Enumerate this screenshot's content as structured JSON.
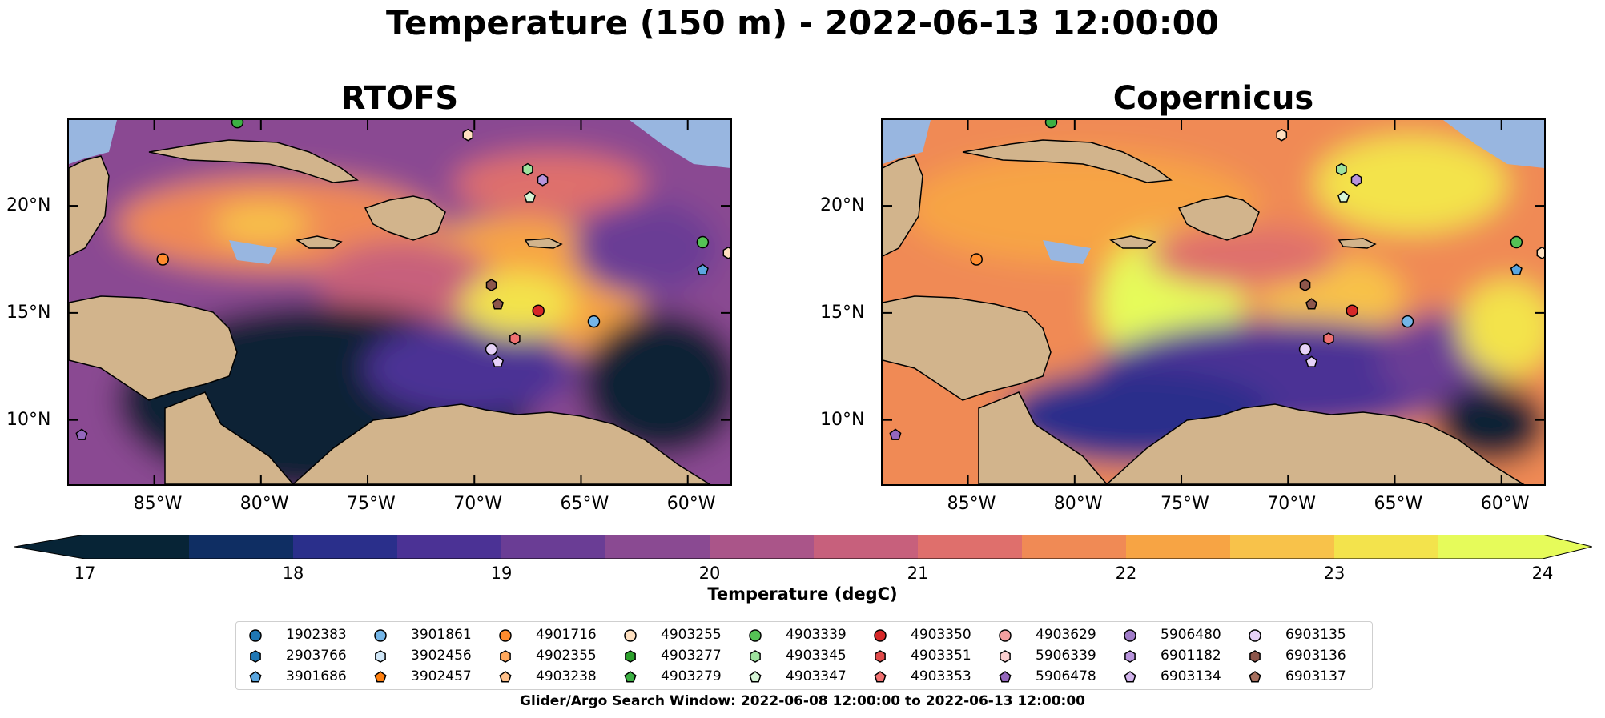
{
  "figure": {
    "suptitle": "Temperature (150 m) - 2022-06-13 12:00:00",
    "footnote": "Glider/Argo Search Window: 2022-06-08 12:00:00 to 2022-06-13 12:00:00"
  },
  "panels": [
    {
      "title": "RTOFS"
    },
    {
      "title": "Copernicus"
    }
  ],
  "axes": {
    "lat_labels": [
      "20°N",
      "15°N",
      "10°N"
    ],
    "lon_labels": [
      "85°W",
      "80°W",
      "75°W",
      "70°W",
      "65°W",
      "60°W"
    ],
    "lat_values": [
      20,
      15,
      10
    ],
    "lon_values": [
      -85,
      -80,
      -75,
      -70,
      -65,
      -60
    ],
    "extent": {
      "lon": [
        -89,
        -58
      ],
      "lat": [
        7,
        24
      ]
    }
  },
  "colorbar": {
    "label": "Temperature (degC)",
    "ticks": [
      "17",
      "18",
      "19",
      "20",
      "21",
      "22",
      "23",
      "24"
    ],
    "range": [
      17,
      24
    ],
    "extend": "both",
    "colormap": "thermal",
    "colors": [
      "#072436",
      "#0f2e63",
      "#2a2f8b",
      "#4b3295",
      "#6a3d95",
      "#8a4a92",
      "#aa5589",
      "#c7607c",
      "#df6f6c",
      "#f08a55",
      "#f7a444",
      "#f8c24a",
      "#f3e34c",
      "#e6fb5a"
    ]
  },
  "legend": {
    "items": [
      {
        "id": "1902383",
        "marker": "circle",
        "color": "#1f77b4"
      },
      {
        "id": "2903766",
        "marker": "hexagon",
        "color": "#1f77b4"
      },
      {
        "id": "3901686",
        "marker": "pentagon",
        "color": "#5aa6df"
      },
      {
        "id": "3901861",
        "marker": "circle",
        "color": "#74b6e8"
      },
      {
        "id": "3902456",
        "marker": "hexagon",
        "color": "#cfe6f7"
      },
      {
        "id": "3902457",
        "marker": "pentagon",
        "color": "#ff7f0e"
      },
      {
        "id": "4901716",
        "marker": "circle",
        "color": "#ff8c2e"
      },
      {
        "id": "4902355",
        "marker": "hexagon",
        "color": "#ffa85c"
      },
      {
        "id": "4903238",
        "marker": "pentagon",
        "color": "#ffc08a"
      },
      {
        "id": "4903255",
        "marker": "circle",
        "color": "#ffe0c0"
      },
      {
        "id": "4903277",
        "marker": "hexagon",
        "color": "#2ca02c"
      },
      {
        "id": "4903279",
        "marker": "pentagon",
        "color": "#3cb043"
      },
      {
        "id": "4903339",
        "marker": "circle",
        "color": "#55c255"
      },
      {
        "id": "4903345",
        "marker": "hexagon",
        "color": "#9ee29e"
      },
      {
        "id": "4903347",
        "marker": "pentagon",
        "color": "#d6f5d6"
      },
      {
        "id": "4903350",
        "marker": "circle",
        "color": "#d62728"
      },
      {
        "id": "4903351",
        "marker": "hexagon",
        "color": "#e04a4a"
      },
      {
        "id": "4903353",
        "marker": "pentagon",
        "color": "#f07070"
      },
      {
        "id": "4903629",
        "marker": "circle",
        "color": "#f4a0a0"
      },
      {
        "id": "5906339",
        "marker": "hexagon",
        "color": "#fbd0d0"
      },
      {
        "id": "5906478",
        "marker": "pentagon",
        "color": "#9467bd"
      },
      {
        "id": "5906480",
        "marker": "circle",
        "color": "#a07cc8"
      },
      {
        "id": "6901182",
        "marker": "hexagon",
        "color": "#b894dc"
      },
      {
        "id": "6903134",
        "marker": "pentagon",
        "color": "#d2b4ec"
      },
      {
        "id": "6903135",
        "marker": "circle",
        "color": "#e6d2f8"
      },
      {
        "id": "6903136",
        "marker": "hexagon",
        "color": "#8c564b"
      },
      {
        "id": "6903137",
        "marker": "pentagon",
        "color": "#a8705f"
      }
    ]
  },
  "floats_on_map": [
    {
      "lon": -81.1,
      "lat": 23.9,
      "marker": "circle",
      "color": "#3cb043"
    },
    {
      "lon": -70.3,
      "lat": 23.3,
      "marker": "hexagon",
      "color": "#ffe0c0"
    },
    {
      "lon": -67.5,
      "lat": 21.7,
      "marker": "hexagon",
      "color": "#9ee29e"
    },
    {
      "lon": -66.8,
      "lat": 21.2,
      "marker": "hexagon",
      "color": "#b894dc"
    },
    {
      "lon": -67.4,
      "lat": 20.4,
      "marker": "pentagon",
      "color": "#d6f5d6"
    },
    {
      "lon": -84.6,
      "lat": 17.5,
      "marker": "circle",
      "color": "#ff8c2e"
    },
    {
      "lon": -59.3,
      "lat": 18.3,
      "marker": "circle",
      "color": "#55c255"
    },
    {
      "lon": -58.1,
      "lat": 17.8,
      "marker": "hexagon",
      "color": "#ffe0c0"
    },
    {
      "lon": -59.3,
      "lat": 17.0,
      "marker": "pentagon",
      "color": "#5aa6df"
    },
    {
      "lon": -69.2,
      "lat": 16.3,
      "marker": "hexagon",
      "color": "#8c564b"
    },
    {
      "lon": -68.9,
      "lat": 15.4,
      "marker": "pentagon",
      "color": "#8c564b"
    },
    {
      "lon": -67.0,
      "lat": 15.1,
      "marker": "circle",
      "color": "#d62728"
    },
    {
      "lon": -64.4,
      "lat": 14.6,
      "marker": "circle",
      "color": "#74b6e8"
    },
    {
      "lon": -68.1,
      "lat": 13.8,
      "marker": "hexagon",
      "color": "#f07070"
    },
    {
      "lon": -69.2,
      "lat": 13.3,
      "marker": "circle",
      "color": "#e6d2f8"
    },
    {
      "lon": -68.9,
      "lat": 12.7,
      "marker": "pentagon",
      "color": "#e6d2f8"
    },
    {
      "lon": -88.4,
      "lat": 9.3,
      "marker": "pentagon",
      "color": "#9467bd"
    }
  ]
}
